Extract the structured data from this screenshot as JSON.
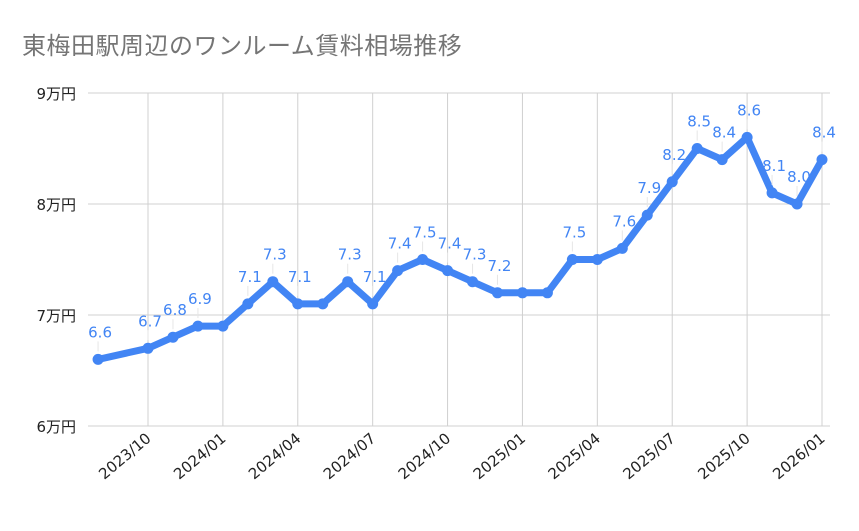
{
  "chart_data": {
    "type": "line",
    "title": "東梅田駅周辺のワンルーム賃料相場推移",
    "xlabel": "",
    "ylabel": "",
    "ylim": [
      6,
      9
    ],
    "y_ticks": [
      {
        "value": 6,
        "label": "6万円"
      },
      {
        "value": 7,
        "label": "7万円"
      },
      {
        "value": 8,
        "label": "8万円"
      },
      {
        "value": 9,
        "label": "9万円"
      }
    ],
    "x_ticks": [
      "2023/10",
      "2024/01",
      "2024/04",
      "2024/07",
      "2024/10",
      "2025/01",
      "2025/04",
      "2025/07",
      "2025/10",
      "2026/01"
    ],
    "grid": true,
    "legend": "none",
    "color": "#4285f4",
    "series": [
      {
        "points": [
          {
            "x": "2023/08",
            "y": 6.6,
            "label": "6.6"
          },
          {
            "x": "2023/10",
            "y": 6.7,
            "label": "6.7"
          },
          {
            "x": "2023/11",
            "y": 6.8,
            "label": "6.8"
          },
          {
            "x": "2023/12",
            "y": 6.9,
            "label": "6.9"
          },
          {
            "x": "2024/01",
            "y": 6.9,
            "label": null
          },
          {
            "x": "2024/02",
            "y": 7.1,
            "label": "7.1"
          },
          {
            "x": "2024/03",
            "y": 7.3,
            "label": "7.3"
          },
          {
            "x": "2024/04",
            "y": 7.1,
            "label": "7.1"
          },
          {
            "x": "2024/05",
            "y": 7.1,
            "label": null
          },
          {
            "x": "2024/06",
            "y": 7.3,
            "label": "7.3"
          },
          {
            "x": "2024/07",
            "y": 7.1,
            "label": "7.1"
          },
          {
            "x": "2024/08",
            "y": 7.4,
            "label": "7.4"
          },
          {
            "x": "2024/09",
            "y": 7.5,
            "label": "7.5"
          },
          {
            "x": "2024/10",
            "y": 7.4,
            "label": "7.4"
          },
          {
            "x": "2024/11",
            "y": 7.3,
            "label": "7.3"
          },
          {
            "x": "2024/12",
            "y": 7.2,
            "label": "7.2"
          },
          {
            "x": "2025/01",
            "y": 7.2,
            "label": null
          },
          {
            "x": "2025/02",
            "y": 7.2,
            "label": null
          },
          {
            "x": "2025/03",
            "y": 7.5,
            "label": "7.5"
          },
          {
            "x": "2025/04",
            "y": 7.5,
            "label": null
          },
          {
            "x": "2025/05",
            "y": 7.6,
            "label": "7.6"
          },
          {
            "x": "2025/06",
            "y": 7.9,
            "label": "7.9"
          },
          {
            "x": "2025/07",
            "y": 8.2,
            "label": "8.2"
          },
          {
            "x": "2025/08",
            "y": 8.5,
            "label": "8.5"
          },
          {
            "x": "2025/09",
            "y": 8.4,
            "label": "8.4"
          },
          {
            "x": "2025/10",
            "y": 8.6,
            "label": "8.6"
          },
          {
            "x": "2025/11",
            "y": 8.1,
            "label": "8.1"
          },
          {
            "x": "2025/12",
            "y": 8.0,
            "label": "8.0"
          },
          {
            "x": "2026/01",
            "y": 8.4,
            "label": "8.4"
          }
        ]
      }
    ]
  }
}
